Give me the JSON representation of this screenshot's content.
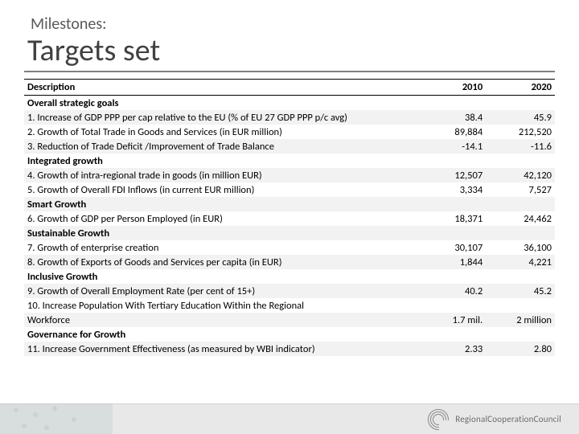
{
  "header": {
    "subtitle": "Milestones:",
    "title": "Targets set"
  },
  "table": {
    "columns": [
      "Description",
      "2010",
      "2020"
    ],
    "col_align": [
      "left",
      "right",
      "right"
    ],
    "rows": [
      {
        "cells": [
          "Overall strategic goals",
          "",
          ""
        ],
        "bold": true,
        "band": false
      },
      {
        "cells": [
          "1. Increase of GDP PPP per cap relative to the EU (% of EU 27 GDP PPP p/c avg)",
          "38.4",
          "45.9"
        ],
        "bold": false,
        "band": true
      },
      {
        "cells": [
          "2. Growth of Total Trade in Goods and Services (in EUR million)",
          "89,884",
          "212,520"
        ],
        "bold": false,
        "band": false
      },
      {
        "cells": [
          "3. Reduction of Trade Deficit /Improvement of Trade Balance",
          "-14.1",
          "-11.6"
        ],
        "bold": false,
        "band": true
      },
      {
        "cells": [
          "Integrated growth",
          "",
          ""
        ],
        "bold": true,
        "band": false
      },
      {
        "cells": [
          "4. Growth of intra-regional trade in goods (in million EUR)",
          "12,507",
          "42,120"
        ],
        "bold": false,
        "band": true
      },
      {
        "cells": [
          "5. Growth of Overall FDI Inflows (in current EUR million)",
          "3,334",
          "7,527"
        ],
        "bold": false,
        "band": false
      },
      {
        "cells": [
          "Smart Growth",
          "",
          ""
        ],
        "bold": true,
        "band": true
      },
      {
        "cells": [
          "6. Growth of GDP per Person Employed (in EUR)",
          "18,371",
          "24,462"
        ],
        "bold": false,
        "band": false
      },
      {
        "cells": [
          "Sustainable Growth",
          "",
          ""
        ],
        "bold": true,
        "band": true
      },
      {
        "cells": [
          "7. Growth of enterprise creation",
          "30,107",
          "36,100"
        ],
        "bold": false,
        "band": false
      },
      {
        "cells": [
          "8. Growth of Exports of Goods and Services per capita (in EUR)",
          "1,844",
          "4,221"
        ],
        "bold": false,
        "band": true
      },
      {
        "cells": [
          "Inclusive Growth",
          "",
          ""
        ],
        "bold": true,
        "band": false
      },
      {
        "cells": [
          "9. Growth of Overall Employment Rate (per cent of 15+)",
          "40.2",
          "45.2"
        ],
        "bold": false,
        "band": true
      },
      {
        "cells": [
          "10. Increase Population With Tertiary Education Within the Regional",
          "",
          ""
        ],
        "bold": false,
        "band": false
      },
      {
        "cells": [
          "Workforce",
          "1.7 mil.",
          "2 million"
        ],
        "bold": false,
        "band": true
      },
      {
        "cells": [
          "Governance for Growth",
          "",
          ""
        ],
        "bold": true,
        "band": false
      },
      {
        "cells": [
          "11. Increase Government Effectiveness (as measured by WBI indicator)",
          "2.33",
          "2.80"
        ],
        "bold": false,
        "band": true
      }
    ],
    "header_border_color": "#000000",
    "band_color": "#f2f2f2",
    "font_size": 12.5
  },
  "footer": {
    "logo_text": "RegionalCooperationCouncil"
  },
  "colors": {
    "subtitle": "#595959",
    "title": "#404040",
    "rule": "#7f7f7f",
    "footer_bg": "#e8e8e8",
    "logo_text": "#6b6b6b"
  }
}
